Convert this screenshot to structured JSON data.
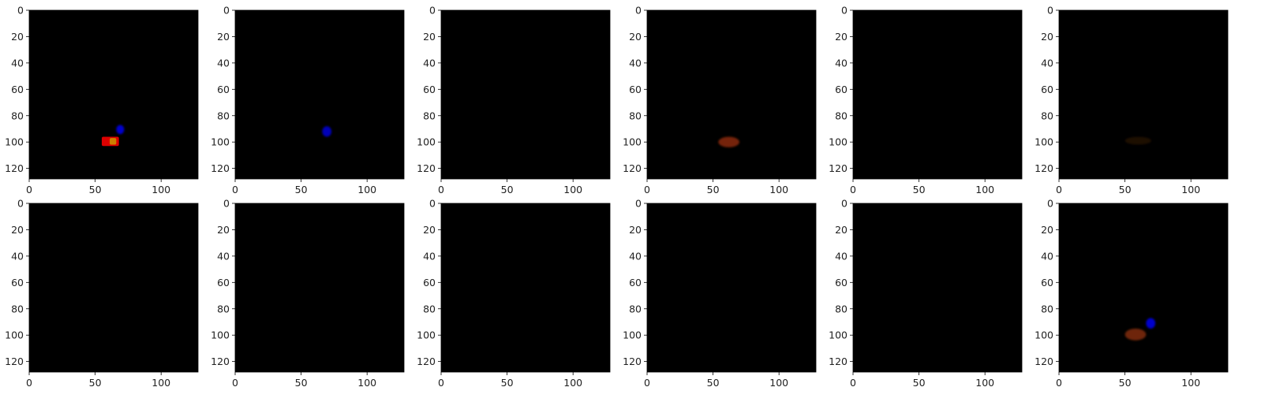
{
  "figure": {
    "rows": 2,
    "cols": 6,
    "background": "#ffffff",
    "axes_color": "#000000",
    "image_background": "#000000"
  },
  "chart_data": [
    {
      "type": "heatmap",
      "panel": "row1-col1",
      "xlim": [
        0,
        128
      ],
      "ylim": [
        128,
        0
      ],
      "x_ticks": [
        "0",
        "50",
        "100"
      ],
      "y_ticks": [
        "0",
        "20",
        "40",
        "60",
        "80",
        "100",
        "120"
      ],
      "blobs": [
        {
          "shape": "rect",
          "color": "#dd0000",
          "x": [
            55,
            68
          ],
          "y": [
            96,
            103
          ],
          "opacity": 1.0
        },
        {
          "shape": "rect",
          "color": "#c8a000",
          "x": [
            61,
            66
          ],
          "y": [
            97,
            102
          ],
          "opacity": 0.8
        },
        {
          "shape": "ellipse",
          "color": "#0000cc",
          "x": [
            66,
            72
          ],
          "y": [
            87,
            94
          ],
          "opacity": 1.0
        }
      ]
    },
    {
      "type": "heatmap",
      "panel": "row1-col2",
      "xlim": [
        0,
        128
      ],
      "ylim": [
        128,
        0
      ],
      "x_ticks": [
        "0",
        "50",
        "100"
      ],
      "y_ticks": [
        "0",
        "20",
        "40",
        "60",
        "80",
        "100",
        "120"
      ],
      "blobs": [
        {
          "shape": "ellipse",
          "color": "#0000cc",
          "x": [
            66,
            73
          ],
          "y": [
            88,
            96
          ],
          "opacity": 0.9
        }
      ]
    },
    {
      "type": "heatmap",
      "panel": "row1-col3",
      "xlim": [
        0,
        128
      ],
      "ylim": [
        128,
        0
      ],
      "x_ticks": [
        "0",
        "50",
        "100"
      ],
      "y_ticks": [
        "0",
        "20",
        "40",
        "60",
        "80",
        "100",
        "120"
      ],
      "blobs": []
    },
    {
      "type": "heatmap",
      "panel": "row1-col4",
      "xlim": [
        0,
        128
      ],
      "ylim": [
        128,
        0
      ],
      "x_ticks": [
        "0",
        "50",
        "100"
      ],
      "y_ticks": [
        "0",
        "20",
        "40",
        "60",
        "80",
        "100",
        "120"
      ],
      "blobs": [
        {
          "shape": "ellipse",
          "color": "#8a2a08",
          "x": [
            54,
            70
          ],
          "y": [
            96,
            104
          ],
          "opacity": 0.85
        }
      ]
    },
    {
      "type": "heatmap",
      "panel": "row1-col5",
      "xlim": [
        0,
        128
      ],
      "ylim": [
        128,
        0
      ],
      "x_ticks": [
        "0",
        "50",
        "100"
      ],
      "y_ticks": [
        "0",
        "20",
        "40",
        "60",
        "80",
        "100",
        "120"
      ],
      "blobs": []
    },
    {
      "type": "heatmap",
      "panel": "row1-col6",
      "xlim": [
        0,
        128
      ],
      "ylim": [
        128,
        0
      ],
      "x_ticks": [
        "0",
        "50",
        "100"
      ],
      "y_ticks": [
        "0",
        "20",
        "40",
        "60",
        "80",
        "100",
        "120"
      ],
      "blobs": [
        {
          "shape": "ellipse",
          "color": "#2a1206",
          "x": [
            50,
            70
          ],
          "y": [
            96,
            102
          ],
          "opacity": 0.7
        }
      ]
    },
    {
      "type": "heatmap",
      "panel": "row2-col1",
      "xlim": [
        0,
        128
      ],
      "ylim": [
        128,
        0
      ],
      "x_ticks": [
        "0",
        "50",
        "100"
      ],
      "y_ticks": [
        "0",
        "20",
        "40",
        "60",
        "80",
        "100",
        "120"
      ],
      "blobs": []
    },
    {
      "type": "heatmap",
      "panel": "row2-col2",
      "xlim": [
        0,
        128
      ],
      "ylim": [
        128,
        0
      ],
      "x_ticks": [
        "0",
        "50",
        "100"
      ],
      "y_ticks": [
        "0",
        "20",
        "40",
        "60",
        "80",
        "100",
        "120"
      ],
      "blobs": []
    },
    {
      "type": "heatmap",
      "panel": "row2-col3",
      "xlim": [
        0,
        128
      ],
      "ylim": [
        128,
        0
      ],
      "x_ticks": [
        "0",
        "50",
        "100"
      ],
      "y_ticks": [
        "0",
        "20",
        "40",
        "60",
        "80",
        "100",
        "120"
      ],
      "blobs": []
    },
    {
      "type": "heatmap",
      "panel": "row2-col4",
      "xlim": [
        0,
        128
      ],
      "ylim": [
        128,
        0
      ],
      "x_ticks": [
        "0",
        "50",
        "100"
      ],
      "y_ticks": [
        "0",
        "20",
        "40",
        "60",
        "80",
        "100",
        "120"
      ],
      "blobs": []
    },
    {
      "type": "heatmap",
      "panel": "row2-col5",
      "xlim": [
        0,
        128
      ],
      "ylim": [
        128,
        0
      ],
      "x_ticks": [
        "0",
        "50",
        "100"
      ],
      "y_ticks": [
        "0",
        "20",
        "40",
        "60",
        "80",
        "100",
        "120"
      ],
      "blobs": []
    },
    {
      "type": "heatmap",
      "panel": "row2-col6",
      "xlim": [
        0,
        128
      ],
      "ylim": [
        128,
        0
      ],
      "x_ticks": [
        "0",
        "50",
        "100"
      ],
      "y_ticks": [
        "0",
        "20",
        "40",
        "60",
        "80",
        "100",
        "120"
      ],
      "blobs": [
        {
          "shape": "ellipse",
          "color": "#7a2a0a",
          "x": [
            50,
            66
          ],
          "y": [
            95,
            104
          ],
          "opacity": 0.9
        },
        {
          "shape": "ellipse",
          "color": "#0000cc",
          "x": [
            66,
            73
          ],
          "y": [
            87,
            95
          ],
          "opacity": 1.0
        }
      ]
    }
  ]
}
